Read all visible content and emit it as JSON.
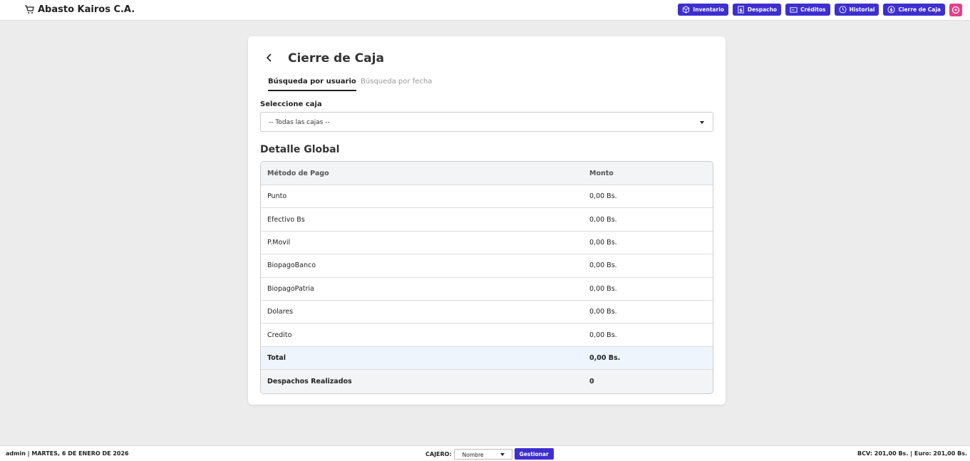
{
  "header": {
    "brand": "Abasto Kairos C.A.",
    "nav": [
      "Inventario",
      "Despacho",
      "Créditos",
      "Historial",
      "Cierre de Caja"
    ]
  },
  "card": {
    "title": "Cierre de Caja",
    "tabs": [
      "Búsqueda por usuario",
      "Búsqueda por fecha"
    ],
    "select_label": "Seleccione caja",
    "select_value": "-- Todas las cajas --",
    "section_title": "Detalle Global",
    "table": {
      "headers": [
        "Método de Pago",
        "Monto"
      ],
      "rows": [
        [
          "Punto",
          "0,00 Bs."
        ],
        [
          "Efectivo Bs",
          "0,00 Bs."
        ],
        [
          "P.Movil",
          "0,00 Bs."
        ],
        [
          "BiopagoBanco",
          "0,00 Bs."
        ],
        [
          "BiopagoPatria",
          "0,00 Bs."
        ],
        [
          "Dolares",
          "0,00 Bs."
        ],
        [
          "Credito",
          "0,00 Bs."
        ]
      ],
      "total": [
        "Total",
        "0,00 Bs."
      ],
      "dispatches": [
        "Despachos Realizados",
        "0"
      ]
    }
  },
  "footer": {
    "user_date": "admin | MARTES, 6 DE ENERO DE 2026",
    "cashier_label": "CAJERO:",
    "cashier_select": "Nombre",
    "button": "Gestionar",
    "rates": "BCV: 201,00 Bs. | Euro: 201,00 Bs."
  }
}
